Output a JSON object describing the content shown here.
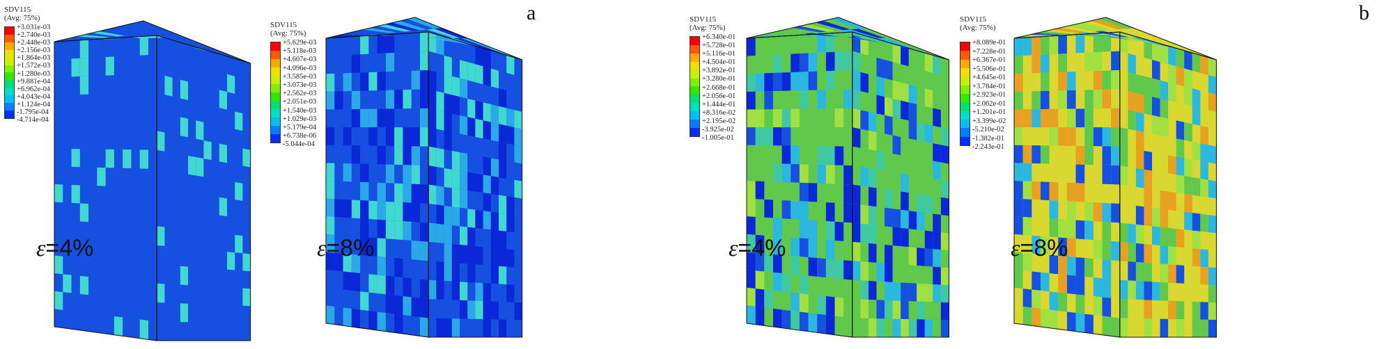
{
  "panels": [
    {
      "label": "a",
      "subfigs": [
        {
          "legend": {
            "title": "SDV115",
            "subtitle": "(Avg: 75%)",
            "values": [
              "+3.031e-03",
              "+2.740e-03",
              "+2.448e-03",
              "+2.156e-03",
              "+1.864e-03",
              "+1.572e-03",
              "+1.280e-03",
              "+9.881e-04",
              "+6.962e-04",
              "+4.043e-04",
              "+1.124e-04",
              "-1.795e-04",
              "-4.714e-04"
            ]
          },
          "strain": {
            "symbol": "ε",
            "text": "=4%"
          }
        },
        {
          "legend": {
            "title": "SDV115",
            "subtitle": "(Avg: 75%)",
            "values": [
              "+5.629e-03",
              "+5.118e-03",
              "+4.607e-03",
              "+4.096e-03",
              "+3.585e-03",
              "+3.073e-03",
              "+2.562e-03",
              "+2.051e-03",
              "+1.540e-03",
              "+1.029e-03",
              "+5.179e-04",
              "+6.738e-06",
              "-5.044e-04"
            ]
          },
          "strain": {
            "symbol": "ε",
            "text": "=8%"
          }
        }
      ]
    },
    {
      "label": "b",
      "subfigs": [
        {
          "legend": {
            "title": "SDV115",
            "subtitle": "(Avg: 75%)",
            "values": [
              "+6.340e-01",
              "+5.728e-01",
              "+5.116e-01",
              "+4.504e-01",
              "+3.892e-01",
              "+3.280e-01",
              "+2.668e-01",
              "+2.056e-01",
              "+1.444e-01",
              "+8.316e-02",
              "+2.195e-02",
              "-3.925e-02",
              "-1.005e-01"
            ]
          },
          "strain": {
            "symbol": "ε",
            "text": "=4%"
          }
        },
        {
          "legend": {
            "title": "SDV115",
            "subtitle": "(Avg: 75%)",
            "values": [
              "+8.089e-01",
              "+7.228e-01",
              "+6.367e-01",
              "+5.506e-01",
              "+4.645e-01",
              "+3.784e-01",
              "+2.923e-01",
              "+2.062e-01",
              "+1.201e-01",
              "+3.399e-02",
              "-5.210e-02",
              "-1.382e-01",
              "-2.243e-01"
            ]
          },
          "strain": {
            "symbol": "ε",
            "text": "=8%"
          }
        }
      ]
    }
  ],
  "colors": {
    "legend_scale": [
      "#ff0000",
      "#ff5a00",
      "#ffaa00",
      "#f0e000",
      "#c8f000",
      "#80f000",
      "#33e800",
      "#00e070",
      "#00e0c0",
      "#00c0f0",
      "#0080ff",
      "#0030ff",
      "#0000d0"
    ],
    "base_blue": "#1550e0",
    "patch_cyan": "#40d8d0",
    "deep_blue": "#0a28d8",
    "green_field": "#60c84a",
    "yellow_field": "#d8d830"
  }
}
